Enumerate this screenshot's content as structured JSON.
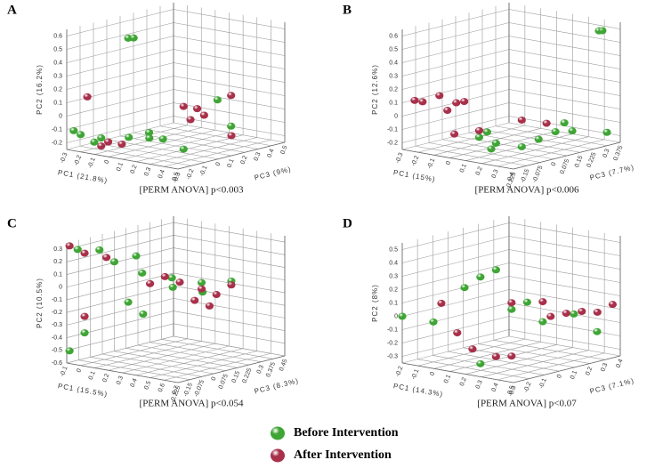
{
  "chart_data": [
    {
      "type": "scatter3d",
      "panel_label": "A",
      "annotation": "[PERM ANOVA] p<0.003",
      "xlabel": "PC1 (21.8%)",
      "ylabel": "PC2 (16.2%)",
      "zlabel": "PC3 (9%)",
      "xlim": [
        -0.3,
        0.5
      ],
      "ylim": [
        -0.25,
        0.65
      ],
      "zlim": [
        -0.3,
        0.5
      ],
      "xticks": [
        -0.3,
        -0.2,
        -0.1,
        0,
        0.1,
        0.2,
        0.3,
        0.4,
        0.5
      ],
      "yticks": [
        -0.2,
        -0.1,
        0,
        0.1,
        0.2,
        0.3,
        0.4,
        0.5,
        0.6
      ],
      "zticks": [
        -0.3,
        -0.2,
        -0.1,
        0,
        0.1,
        0.2,
        0.3,
        0.4,
        0.5
      ],
      "series": [
        {
          "name": "Before Intervention",
          "color": "#3fa535",
          "x": [
            -0.05,
            -0.03,
            -0.25,
            -0.2,
            -0.1,
            0.05,
            0.1,
            0.15,
            0.2,
            -0.15,
            0.3,
            0.4,
            0.45
          ],
          "values": [
            0.58,
            0.58,
            -0.1,
            -0.12,
            -0.14,
            -0.12,
            -0.1,
            -0.12,
            -0.13,
            -0.18,
            -0.2,
            0.15,
            -0.05
          ],
          "z": [
            -0.1,
            -0.08,
            -0.3,
            -0.3,
            -0.25,
            -0.2,
            -0.1,
            -0.15,
            -0.1,
            -0.25,
            -0.05,
            0.1,
            0.15
          ]
        },
        {
          "name": "After Intervention",
          "color": "#a8304a",
          "x": [
            -0.2,
            0.3,
            0.35,
            0.4,
            0.35,
            0.45,
            -0.05,
            -0.1,
            0.0,
            0.5
          ],
          "values": [
            0.15,
            0.12,
            0.1,
            0.06,
            0.03,
            0.18,
            -0.16,
            -0.2,
            -0.18,
            -0.1
          ],
          "z": [
            -0.25,
            -0.05,
            0.0,
            0.0,
            -0.05,
            0.15,
            -0.25,
            -0.25,
            -0.2,
            0.1
          ]
        }
      ]
    },
    {
      "type": "scatter3d",
      "panel_label": "B",
      "annotation": "[PERM ANOVA] p<0.006",
      "xlabel": "PC1 (15%)",
      "ylabel": "PC2 (12.6%)",
      "zlabel": "PC3 (7.7%)",
      "xlim": [
        -0.3,
        0.4
      ],
      "ylim": [
        -0.25,
        0.65
      ],
      "zlim": [
        -0.225,
        0.375
      ],
      "xticks": [
        -0.3,
        -0.2,
        -0.1,
        0,
        0.1,
        0.2,
        0.3,
        0.4
      ],
      "yticks": [
        -0.2,
        -0.1,
        0,
        0.1,
        0.2,
        0.3,
        0.4,
        0.5,
        0.6
      ],
      "zticks": [
        -0.225,
        -0.15,
        -0.075,
        0,
        0.075,
        0.15,
        0.225,
        0.3,
        0.375
      ],
      "series": [
        {
          "color": "#3fa535",
          "x": [
            0.35,
            0.36,
            0.1,
            0.15,
            0.12,
            0.2,
            0.25,
            0.3,
            0.35,
            0.3,
            0.4,
            0.15
          ],
          "values": [
            0.6,
            0.6,
            -0.1,
            -0.15,
            -0.2,
            -0.2,
            -0.15,
            -0.1,
            -0.1,
            -0.05,
            -0.15,
            -0.05
          ],
          "z": [
            0.3,
            0.31,
            -0.15,
            -0.1,
            -0.1,
            0.0,
            0.05,
            0.1,
            0.15,
            0.15,
            0.3,
            -0.15
          ]
        },
        {
          "color": "#a8304a",
          "x": [
            -0.25,
            -0.2,
            -0.15,
            -0.1,
            -0.05,
            -0.1,
            0.1,
            0.2,
            0.3,
            0.0
          ],
          "values": [
            0.12,
            0.12,
            0.16,
            0.1,
            0.12,
            0.06,
            -0.05,
            0.0,
            -0.02,
            -0.08
          ],
          "z": [
            -0.2,
            -0.2,
            -0.15,
            -0.1,
            -0.1,
            -0.15,
            -0.15,
            0.0,
            0.05,
            -0.2
          ]
        }
      ]
    },
    {
      "type": "scatter3d",
      "panel_label": "C",
      "annotation": "[PERM ANOVA] p<0.054",
      "xlabel": "PC1 (15.5%)",
      "ylabel": "PC2 (10.5%)",
      "zlabel": "PC3 (8.3%)",
      "xlim": [
        -0.1,
        0.7
      ],
      "ylim": [
        -0.6,
        0.35
      ],
      "zlim": [
        -0.225,
        0.45
      ],
      "xticks": [
        -0.1,
        0,
        0.1,
        0.2,
        0.3,
        0.4,
        0.5,
        0.6,
        0.7
      ],
      "yticks": [
        -0.6,
        -0.5,
        -0.4,
        -0.3,
        -0.2,
        -0.1,
        0,
        0.1,
        0.2,
        0.3
      ],
      "zticks": [
        -0.225,
        -0.15,
        -0.075,
        0,
        0.075,
        0.15,
        0.225,
        0.3,
        0.375,
        0.45
      ],
      "series": [
        {
          "color": "#3fa535",
          "x": [
            -0.05,
            0.05,
            0.1,
            0.2,
            0.3,
            0.4,
            0.35,
            0.5,
            0.6,
            0.45,
            0.2,
            0.25,
            0.0,
            -0.08
          ],
          "values": [
            0.3,
            0.3,
            0.2,
            0.25,
            0.15,
            0.1,
            0.0,
            0.05,
            0.05,
            -0.05,
            -0.1,
            -0.2,
            -0.35,
            -0.5
          ],
          "z": [
            -0.2,
            -0.15,
            -0.1,
            -0.05,
            -0.1,
            0.0,
            0.05,
            0.1,
            0.2,
            0.15,
            -0.1,
            -0.05,
            -0.2,
            -0.225
          ]
        },
        {
          "color": "#a8304a",
          "x": [
            -0.08,
            0.0,
            0.1,
            0.3,
            0.35,
            0.4,
            0.5,
            0.55,
            0.6,
            0.45,
            0.5,
            0.0
          ],
          "values": [
            0.33,
            0.28,
            0.25,
            0.05,
            0.1,
            0.05,
            0.0,
            -0.05,
            0.02,
            -0.1,
            -0.15,
            -0.22
          ],
          "z": [
            -0.225,
            -0.2,
            -0.15,
            -0.05,
            0.0,
            0.05,
            0.1,
            0.15,
            0.2,
            0.1,
            0.15,
            -0.2
          ]
        }
      ]
    },
    {
      "type": "scatter3d",
      "panel_label": "D",
      "annotation": "[PERM ANOVA] p<0.07",
      "xlabel": "PC1 (14.3%)",
      "ylabel": "PC2 (8%)",
      "zlabel": "PC3 (7.1%)",
      "xlim": [
        -0.2,
        0.5
      ],
      "ylim": [
        -0.35,
        0.55
      ],
      "zlim": [
        -0.3,
        0.4
      ],
      "xticks": [
        -0.2,
        -0.1,
        0,
        0.1,
        0.2,
        0.3,
        0.4,
        0.5
      ],
      "yticks": [
        -0.3,
        -0.2,
        -0.1,
        0,
        0.1,
        0.2,
        0.3,
        0.4,
        0.5
      ],
      "zticks": [
        -0.3,
        -0.2,
        -0.1,
        0,
        0.1,
        0.2,
        0.3,
        0.4
      ],
      "series": [
        {
          "color": "#3fa535",
          "x": [
            -0.2,
            -0.1,
            0.0,
            0.1,
            0.15,
            0.2,
            0.25,
            0.3,
            0.4,
            0.45,
            0.1
          ],
          "values": [
            0.0,
            -0.05,
            0.2,
            0.3,
            0.35,
            0.05,
            0.1,
            -0.05,
            0.0,
            -0.15,
            -0.35
          ],
          "z": [
            -0.3,
            -0.2,
            -0.1,
            -0.1,
            -0.05,
            0.0,
            0.05,
            0.1,
            0.2,
            0.3,
            -0.1
          ]
        },
        {
          "color": "#a8304a",
          "x": [
            -0.05,
            0.05,
            0.2,
            0.3,
            0.35,
            0.4,
            0.45,
            0.5,
            0.5,
            0.05,
            0.15,
            0.2
          ],
          "values": [
            0.1,
            -0.1,
            0.1,
            0.1,
            0.0,
            0.02,
            0.03,
            0.02,
            0.05,
            -0.25,
            -0.3,
            -0.3
          ],
          "z": [
            -0.2,
            -0.2,
            0.0,
            0.1,
            0.1,
            0.15,
            0.2,
            0.25,
            0.35,
            -0.1,
            -0.05,
            0.0
          ]
        }
      ]
    }
  ]
}
